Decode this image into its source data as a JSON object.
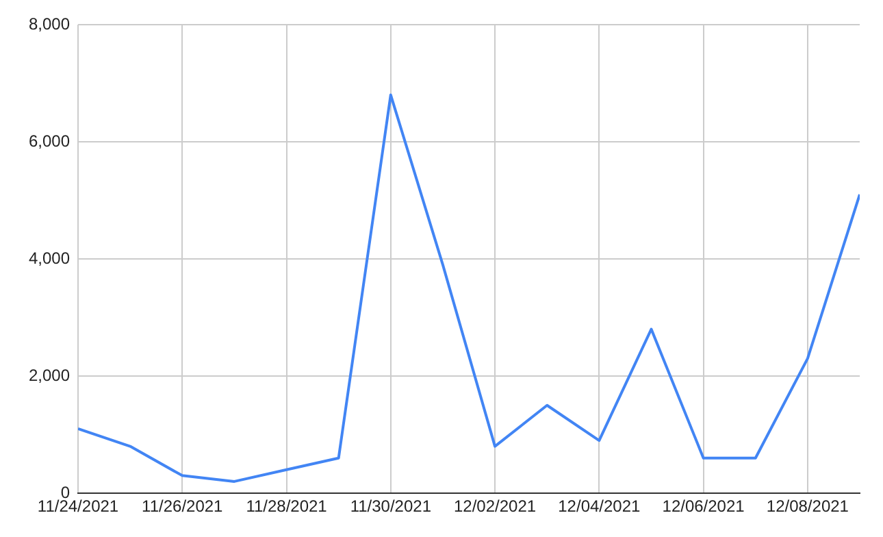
{
  "chart_data": {
    "type": "line",
    "x": [
      "2021-11-24",
      "2021-11-25",
      "2021-11-26",
      "2021-11-27",
      "2021-11-28",
      "2021-11-29",
      "2021-11-30",
      "2021-12-01",
      "2021-12-02",
      "2021-12-03",
      "2021-12-04",
      "2021-12-05",
      "2021-12-06",
      "2021-12-07",
      "2021-12-08",
      "2021-12-09"
    ],
    "series": [
      {
        "color": "#4285f4",
        "values": [
          1100,
          800,
          300,
          200,
          400,
          600,
          6800,
          3900,
          800,
          1500,
          900,
          2800,
          600,
          600,
          2300,
          5100
        ]
      }
    ],
    "xlim": [
      "2021-11-24",
      "2021-12-09"
    ],
    "xticks": [
      {
        "value": "2021-11-24",
        "label": "11/24/2021"
      },
      {
        "value": "2021-11-26",
        "label": "11/26/2021"
      },
      {
        "value": "2021-11-28",
        "label": "11/28/2021"
      },
      {
        "value": "2021-11-30",
        "label": "11/30/2021"
      },
      {
        "value": "2021-12-02",
        "label": "12/02/2021"
      },
      {
        "value": "2021-12-04",
        "label": "12/04/2021"
      },
      {
        "value": "2021-12-06",
        "label": "12/06/2021"
      },
      {
        "value": "2021-12-08",
        "label": "12/08/2021"
      }
    ],
    "ylim": [
      0,
      8000
    ],
    "yticks": [
      {
        "value": 0,
        "label": "0"
      },
      {
        "value": 2000,
        "label": "2,000"
      },
      {
        "value": 4000,
        "label": "4,000"
      },
      {
        "value": 6000,
        "label": "6,000"
      },
      {
        "value": 8000,
        "label": "8,000"
      }
    ],
    "grid": true,
    "legend": false,
    "marker": "none",
    "line_style": "solid"
  }
}
